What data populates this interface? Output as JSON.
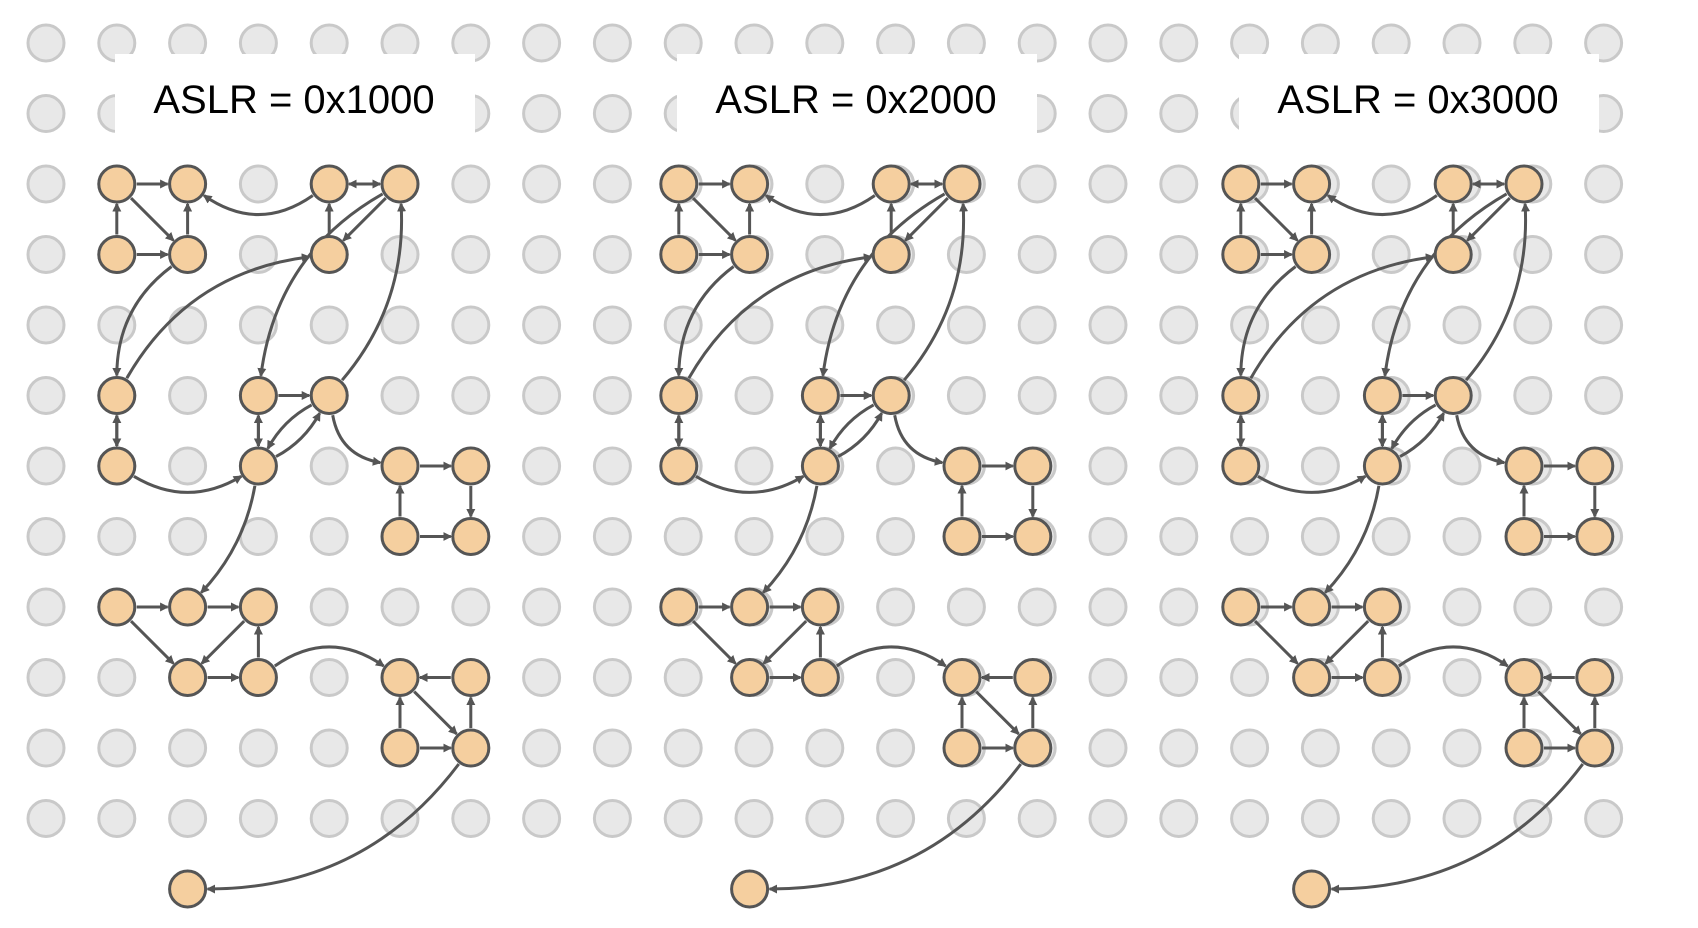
{
  "colors": {
    "background": "#ffffff",
    "grid_dot_fill": "#e8e8e8",
    "grid_dot_stroke": "#c9c9c9",
    "node_fill": "#f5cf9f",
    "node_stroke": "#555555",
    "edge": "#555555"
  },
  "panels": [
    {
      "id": "panel-1",
      "title": "ASLR = 0x1000"
    },
    {
      "id": "panel-2",
      "title": "ASLR = 0x2000"
    },
    {
      "id": "panel-3",
      "title": "ASLR = 0x3000"
    }
  ]
}
